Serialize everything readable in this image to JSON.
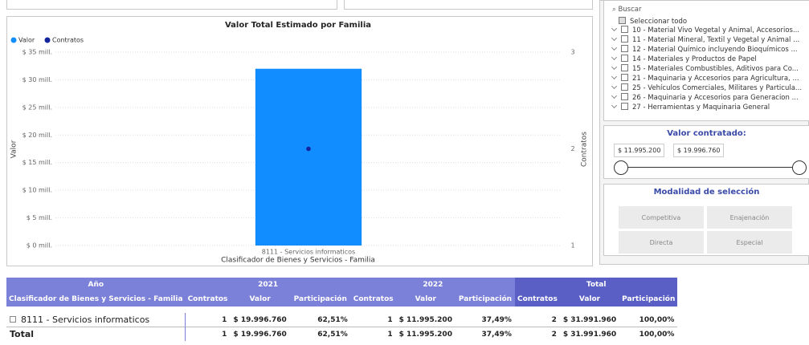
{
  "chart": {
    "type": "bar",
    "title": "Valor Total Estimado por Familia",
    "categories": [
      "8111 - Servicios informaticos"
    ],
    "series": [
      {
        "name": "Valor",
        "color": "#118dff",
        "values": [
          31.99196
        ]
      },
      {
        "name": "Contratos",
        "color": "#12239e",
        "axis": "y2",
        "values": [
          2
        ]
      }
    ],
    "xlabel": "Clasificador de Bienes y Servicios - Familia",
    "ylabel": "Valor",
    "y2label": "Contratos",
    "ylim": [
      0,
      35
    ],
    "yticks": [
      {
        "value": 0,
        "label": "$ 0 mill."
      },
      {
        "value": 5,
        "label": "$ 5 mill."
      },
      {
        "value": 10,
        "label": "$ 10 mill."
      },
      {
        "value": 15,
        "label": "$ 15 mill."
      },
      {
        "value": 20,
        "label": "$ 20 mill."
      },
      {
        "value": 25,
        "label": "$ 25 mill."
      },
      {
        "value": 30,
        "label": "$ 30 mill."
      },
      {
        "value": 35,
        "label": "$ 35 mill."
      }
    ],
    "y2lim": [
      1,
      3
    ],
    "y2ticks": [
      1,
      2,
      3
    ],
    "grid": true
  },
  "slicer": {
    "search": "Buscar",
    "select_all": "Seleccionar todo",
    "items": [
      "10 - Material Vivo Vegetal y Animal, Accesorios...",
      "11 - Material Mineral, Textil y Vegetal y Animal ...",
      "12 - Material Químico incluyendo Bioquímicos ...",
      "14 - Materiales y Productos de Papel",
      "15 - Materiales Combustibles, Aditivos para Co...",
      "21 - Maquinaria y Accesorios para Agricultura, ...",
      "25 - Vehículos Comerciales, Militares y Particula...",
      "26 - Maquinaria y Accesorios para Generacion ...",
      "27 - Herramientas y Maquinaria General"
    ]
  },
  "range_slicer": {
    "title": "Valor contratado:",
    "min_label": "$ 11.995.200",
    "max_label": "$ 19.996.760"
  },
  "modalidad": {
    "title": "Modalidad de selección",
    "options": [
      "Competitiva",
      "Enajenación",
      "Directa",
      "Especial"
    ]
  },
  "matrix": {
    "header_top": [
      "Año",
      "2021",
      "2022",
      "Total"
    ],
    "columns": [
      "Clasificador de Bienes y Servicios - Familia",
      "Contratos",
      "Valor",
      "Participación",
      "Contratos",
      "Valor",
      "Participación",
      "Contratos",
      "Valor",
      "Participación"
    ],
    "rows": [
      [
        "8111 - Servicios informaticos",
        "1",
        "$ 19.996.760",
        "62,51%",
        "1",
        "$ 11.995.200",
        "37,49%",
        "2",
        "$ 31.991.960",
        "100,00%"
      ],
      [
        "Total",
        "1",
        "$ 19.996.760",
        "62,51%",
        "1",
        "$ 11.995.200",
        "37,49%",
        "2",
        "$ 31.991.960",
        "100,00%"
      ]
    ]
  }
}
